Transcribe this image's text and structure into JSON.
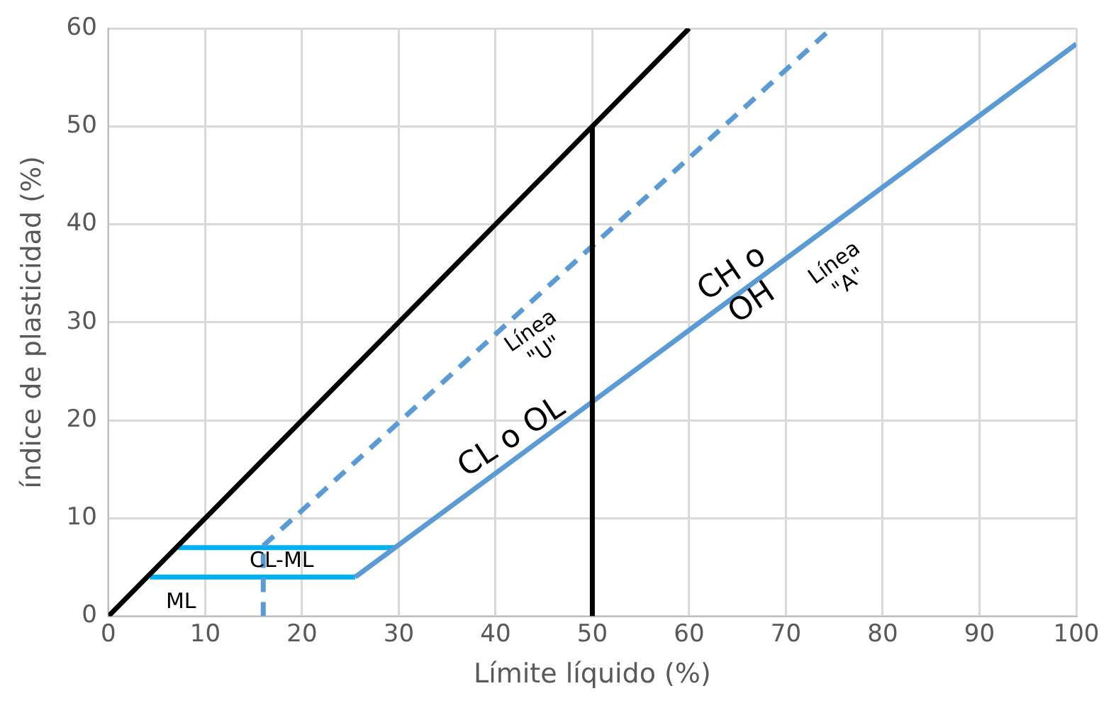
{
  "chart_data": {
    "type": "line",
    "xlabel": "Límite líquido (%)",
    "ylabel": "índice de plasticidad (%)",
    "xlim": [
      0,
      100
    ],
    "xticks": [
      0,
      10,
      20,
      30,
      40,
      50,
      60,
      70,
      80,
      90,
      100
    ],
    "ylim": [
      0,
      60
    ],
    "yticks": [
      0,
      10,
      20,
      30,
      40,
      50,
      60
    ],
    "grid": true,
    "legend": false,
    "marker": "none",
    "series": [
      {
        "color": "#000000",
        "x": [
          0,
          60
        ],
        "values": [
          0,
          60
        ],
        "line_style": "solid"
      },
      {
        "color": "#000000",
        "x": [
          50,
          50
        ],
        "values": [
          0,
          50
        ],
        "line_style": "solid"
      },
      {
        "color": "#5b9bd5",
        "x": [
          16,
          74.7
        ],
        "values": [
          7.2,
          60
        ],
        "line_style": "dashed"
      },
      {
        "color": "#5b9bd5",
        "x": [
          16,
          16
        ],
        "values": [
          0,
          7.2
        ],
        "line_style": "dashed"
      },
      {
        "color": "#5b9bd5",
        "x": [
          25.5,
          100
        ],
        "values": [
          4,
          58.4
        ],
        "line_style": "solid"
      },
      {
        "color": "#00b0f0",
        "x": [
          7.2,
          29.7
        ],
        "values": [
          7,
          7
        ],
        "line_style": "solid"
      },
      {
        "color": "#00b0f0",
        "x": [
          4.3,
          25.5
        ],
        "values": [
          4,
          4
        ],
        "line_style": "solid"
      }
    ],
    "annotations": [
      "CL-ML",
      "ML",
      "CL o OL",
      "Línea\n\"U\"",
      "CH o\nOH",
      "Línea\n\"A\""
    ]
  }
}
